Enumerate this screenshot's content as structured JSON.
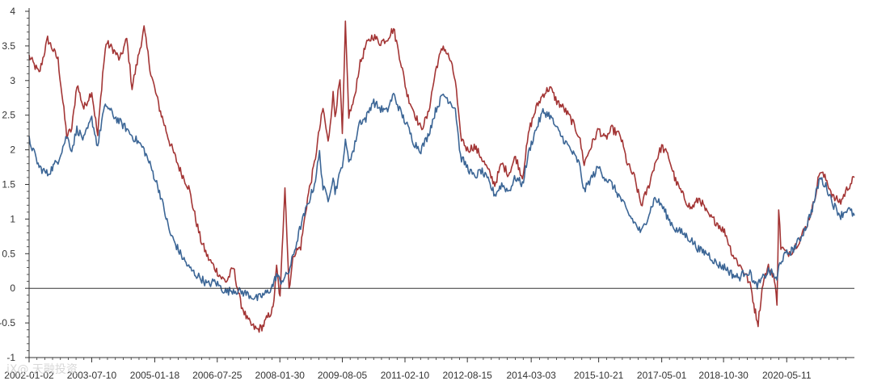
{
  "watermark": "iX@ 天融投资",
  "chart_data": {
    "type": "line",
    "title": "",
    "xlabel": "",
    "ylabel": "",
    "ylim": [
      -1,
      4
    ],
    "yticks": [
      -1,
      -0.5,
      0,
      0.5,
      1,
      1.5,
      2,
      2.5,
      3,
      3.5,
      4
    ],
    "ytick_labels": [
      "-1",
      "-0.5",
      "0",
      "0.5",
      "1",
      "1.5",
      "2",
      "2.5",
      "3",
      "3.5",
      "4"
    ],
    "xlim": [
      "2002-01-02",
      "2021-12-31"
    ],
    "xtick_labels": [
      "2002-01-02",
      "2003-07-10",
      "2005-01-18",
      "2006-07-25",
      "2008-01-30",
      "2009-08-05",
      "2011-02-10",
      "2012-08-15",
      "2014-03-03",
      "2015-10-21",
      "2017-05-01",
      "2018-10-30",
      "2020-05-11"
    ],
    "zero_line": true,
    "grid": false,
    "legend": "none",
    "series": [
      {
        "color": "#a33535",
        "points": [
          [
            "2002-01-02",
            3.35
          ],
          [
            "2002-04-01",
            3.1
          ],
          [
            "2002-06-15",
            3.6
          ],
          [
            "2002-09-15",
            3.3
          ],
          [
            "2002-12-01",
            2.2
          ],
          [
            "2003-01-15",
            2.3
          ],
          [
            "2003-03-01",
            2.95
          ],
          [
            "2003-05-01",
            2.6
          ],
          [
            "2003-07-10",
            2.85
          ],
          [
            "2003-09-01",
            2.2
          ],
          [
            "2003-10-15",
            3.1
          ],
          [
            "2003-11-15",
            3.55
          ],
          [
            "2004-01-15",
            3.45
          ],
          [
            "2004-03-15",
            3.3
          ],
          [
            "2004-05-15",
            3.6
          ],
          [
            "2004-07-01",
            2.9
          ],
          [
            "2004-09-01",
            3.4
          ],
          [
            "2004-10-15",
            3.75
          ],
          [
            "2004-12-15",
            3.1
          ],
          [
            "2005-03-01",
            2.6
          ],
          [
            "2005-06-01",
            2.1
          ],
          [
            "2005-09-01",
            1.7
          ],
          [
            "2005-11-15",
            1.45
          ],
          [
            "2006-01-15",
            1.0
          ],
          [
            "2006-03-01",
            0.7
          ],
          [
            "2006-05-01",
            0.45
          ],
          [
            "2006-07-01",
            0.3
          ],
          [
            "2006-09-01",
            0.15
          ],
          [
            "2006-10-15",
            0.1
          ],
          [
            "2006-12-15",
            0.3
          ],
          [
            "2007-02-15",
            -0.2
          ],
          [
            "2007-04-15",
            -0.45
          ],
          [
            "2007-06-01",
            -0.55
          ],
          [
            "2007-07-15",
            -0.6
          ],
          [
            "2007-09-01",
            -0.55
          ],
          [
            "2007-10-20",
            -0.4
          ],
          [
            "2007-12-01",
            -0.3
          ],
          [
            "2008-01-01",
            0.3
          ],
          [
            "2008-02-01",
            -0.15
          ],
          [
            "2008-03-15",
            1.5
          ],
          [
            "2008-04-20",
            0.0
          ],
          [
            "2008-06-01",
            0.5
          ],
          [
            "2008-08-01",
            0.6
          ],
          [
            "2008-10-01",
            1.3
          ],
          [
            "2008-12-01",
            1.8
          ],
          [
            "2009-01-15",
            2.3
          ],
          [
            "2009-02-15",
            2.6
          ],
          [
            "2009-04-01",
            2.1
          ],
          [
            "2009-05-15",
            2.8
          ],
          [
            "2009-06-01",
            2.5
          ],
          [
            "2009-07-15",
            3.0
          ],
          [
            "2009-08-05",
            2.2
          ],
          [
            "2009-09-01",
            3.8
          ],
          [
            "2009-10-01",
            2.5
          ],
          [
            "2009-11-15",
            2.7
          ],
          [
            "2010-01-01",
            3.2
          ],
          [
            "2010-03-01",
            3.5
          ],
          [
            "2010-05-01",
            3.65
          ],
          [
            "2010-07-01",
            3.55
          ],
          [
            "2010-09-01",
            3.6
          ],
          [
            "2010-11-01",
            3.75
          ],
          [
            "2011-01-01",
            3.3
          ],
          [
            "2011-03-01",
            2.8
          ],
          [
            "2011-05-01",
            2.55
          ],
          [
            "2011-07-01",
            2.3
          ],
          [
            "2011-09-01",
            2.5
          ],
          [
            "2011-11-15",
            3.2
          ],
          [
            "2012-01-15",
            3.5
          ],
          [
            "2012-03-15",
            3.3
          ],
          [
            "2012-05-01",
            3.0
          ],
          [
            "2012-06-15",
            2.2
          ],
          [
            "2012-08-15",
            2.0
          ],
          [
            "2012-10-15",
            2.05
          ],
          [
            "2012-12-15",
            1.9
          ],
          [
            "2013-02-15",
            1.7
          ],
          [
            "2013-04-15",
            1.5
          ],
          [
            "2013-06-15",
            1.8
          ],
          [
            "2013-08-15",
            1.65
          ],
          [
            "2013-10-15",
            1.9
          ],
          [
            "2013-12-15",
            1.6
          ],
          [
            "2014-02-15",
            2.3
          ],
          [
            "2014-04-15",
            2.6
          ],
          [
            "2014-06-15",
            2.8
          ],
          [
            "2014-08-15",
            2.9
          ],
          [
            "2014-10-15",
            2.7
          ],
          [
            "2014-12-15",
            2.6
          ],
          [
            "2015-02-15",
            2.45
          ],
          [
            "2015-05-01",
            2.2
          ],
          [
            "2015-06-15",
            1.8
          ],
          [
            "2015-08-01",
            2.0
          ],
          [
            "2015-10-21",
            2.3
          ],
          [
            "2015-12-15",
            2.15
          ],
          [
            "2016-02-15",
            2.3
          ],
          [
            "2016-05-01",
            2.2
          ],
          [
            "2016-07-01",
            1.8
          ],
          [
            "2016-09-01",
            1.6
          ],
          [
            "2016-11-01",
            1.2
          ],
          [
            "2017-01-01",
            1.45
          ],
          [
            "2017-03-01",
            1.8
          ],
          [
            "2017-05-01",
            2.05
          ],
          [
            "2017-07-01",
            1.9
          ],
          [
            "2017-09-01",
            1.55
          ],
          [
            "2017-11-01",
            1.35
          ],
          [
            "2018-01-15",
            1.15
          ],
          [
            "2018-04-01",
            1.3
          ],
          [
            "2018-06-15",
            1.05
          ],
          [
            "2018-09-01",
            0.95
          ],
          [
            "2018-11-15",
            0.8
          ],
          [
            "2019-01-15",
            0.5
          ],
          [
            "2019-03-15",
            0.35
          ],
          [
            "2019-05-15",
            0.2
          ],
          [
            "2019-07-01",
            0.0
          ],
          [
            "2019-08-01",
            -0.3
          ],
          [
            "2019-09-01",
            -0.5
          ],
          [
            "2019-10-15",
            0.1
          ],
          [
            "2019-12-01",
            0.3
          ],
          [
            "2020-01-15",
            0.2
          ],
          [
            "2020-02-15",
            -0.2
          ],
          [
            "2020-03-01",
            1.15
          ],
          [
            "2020-03-20",
            0.6
          ],
          [
            "2020-05-11",
            0.5
          ],
          [
            "2020-07-01",
            0.55
          ],
          [
            "2020-09-01",
            0.7
          ],
          [
            "2020-11-01",
            0.9
          ],
          [
            "2021-01-01",
            1.2
          ],
          [
            "2021-03-01",
            1.7
          ],
          [
            "2021-05-01",
            1.55
          ],
          [
            "2021-07-01",
            1.3
          ],
          [
            "2021-09-01",
            1.25
          ],
          [
            "2021-11-01",
            1.45
          ],
          [
            "2021-12-31",
            1.6
          ]
        ]
      },
      {
        "color": "#3c6696",
        "points": [
          [
            "2002-01-02",
            2.15
          ],
          [
            "2002-04-01",
            1.75
          ],
          [
            "2002-06-15",
            1.65
          ],
          [
            "2002-09-15",
            1.85
          ],
          [
            "2002-12-01",
            2.2
          ],
          [
            "2003-01-15",
            2.0
          ],
          [
            "2003-03-01",
            2.3
          ],
          [
            "2003-05-01",
            2.15
          ],
          [
            "2003-07-10",
            2.45
          ],
          [
            "2003-09-01",
            2.05
          ],
          [
            "2003-10-15",
            2.5
          ],
          [
            "2003-11-15",
            2.65
          ],
          [
            "2004-01-15",
            2.5
          ],
          [
            "2004-03-15",
            2.4
          ],
          [
            "2004-05-15",
            2.3
          ],
          [
            "2004-07-01",
            2.2
          ],
          [
            "2004-09-01",
            2.1
          ],
          [
            "2004-10-15",
            2.0
          ],
          [
            "2004-12-15",
            1.75
          ],
          [
            "2005-03-01",
            1.4
          ],
          [
            "2005-06-01",
            0.8
          ],
          [
            "2005-09-01",
            0.5
          ],
          [
            "2005-11-15",
            0.3
          ],
          [
            "2006-01-15",
            0.2
          ],
          [
            "2006-03-01",
            0.15
          ],
          [
            "2006-05-01",
            0.05
          ],
          [
            "2006-07-01",
            0.1
          ],
          [
            "2006-09-01",
            0.0
          ],
          [
            "2006-10-15",
            -0.05
          ],
          [
            "2006-12-15",
            -0.02
          ],
          [
            "2007-02-15",
            -0.05
          ],
          [
            "2007-04-15",
            -0.08
          ],
          [
            "2007-06-01",
            -0.12
          ],
          [
            "2007-07-15",
            -0.15
          ],
          [
            "2007-09-01",
            -0.1
          ],
          [
            "2007-10-20",
            -0.05
          ],
          [
            "2007-12-01",
            0.05
          ],
          [
            "2008-01-01",
            0.2
          ],
          [
            "2008-02-01",
            0.1
          ],
          [
            "2008-03-15",
            0.15
          ],
          [
            "2008-04-20",
            0.25
          ],
          [
            "2008-06-01",
            0.5
          ],
          [
            "2008-08-01",
            0.9
          ],
          [
            "2008-10-01",
            1.2
          ],
          [
            "2008-12-01",
            1.5
          ],
          [
            "2009-01-15",
            1.95
          ],
          [
            "2009-02-15",
            1.45
          ],
          [
            "2009-04-01",
            1.3
          ],
          [
            "2009-05-15",
            1.6
          ],
          [
            "2009-06-01",
            1.4
          ],
          [
            "2009-07-15",
            1.65
          ],
          [
            "2009-08-05",
            1.8
          ],
          [
            "2009-09-01",
            2.1
          ],
          [
            "2009-10-01",
            1.85
          ],
          [
            "2009-11-15",
            2.0
          ],
          [
            "2010-01-01",
            2.4
          ],
          [
            "2010-03-01",
            2.45
          ],
          [
            "2010-05-01",
            2.7
          ],
          [
            "2010-07-01",
            2.6
          ],
          [
            "2010-09-01",
            2.55
          ],
          [
            "2010-11-01",
            2.8
          ],
          [
            "2011-01-01",
            2.55
          ],
          [
            "2011-03-01",
            2.35
          ],
          [
            "2011-05-01",
            2.1
          ],
          [
            "2011-07-01",
            2.0
          ],
          [
            "2011-09-01",
            2.2
          ],
          [
            "2011-11-15",
            2.6
          ],
          [
            "2012-01-15",
            2.8
          ],
          [
            "2012-03-15",
            2.7
          ],
          [
            "2012-05-01",
            2.6
          ],
          [
            "2012-06-15",
            1.9
          ],
          [
            "2012-08-15",
            1.75
          ],
          [
            "2012-10-15",
            1.6
          ],
          [
            "2012-12-15",
            1.7
          ],
          [
            "2013-02-15",
            1.55
          ],
          [
            "2013-04-15",
            1.35
          ],
          [
            "2013-06-15",
            1.5
          ],
          [
            "2013-08-15",
            1.4
          ],
          [
            "2013-10-15",
            1.6
          ],
          [
            "2013-12-15",
            1.5
          ],
          [
            "2014-02-15",
            2.0
          ],
          [
            "2014-04-15",
            2.3
          ],
          [
            "2014-06-15",
            2.55
          ],
          [
            "2014-08-15",
            2.5
          ],
          [
            "2014-10-15",
            2.3
          ],
          [
            "2014-12-15",
            2.15
          ],
          [
            "2015-02-15",
            2.0
          ],
          [
            "2015-05-01",
            1.8
          ],
          [
            "2015-06-15",
            1.4
          ],
          [
            "2015-08-01",
            1.55
          ],
          [
            "2015-10-21",
            1.75
          ],
          [
            "2015-12-15",
            1.6
          ],
          [
            "2016-02-15",
            1.5
          ],
          [
            "2016-05-01",
            1.3
          ],
          [
            "2016-07-01",
            1.1
          ],
          [
            "2016-09-01",
            0.95
          ],
          [
            "2016-11-01",
            0.8
          ],
          [
            "2017-01-01",
            1.05
          ],
          [
            "2017-03-01",
            1.3
          ],
          [
            "2017-05-01",
            1.2
          ],
          [
            "2017-07-01",
            1.0
          ],
          [
            "2017-09-01",
            0.85
          ],
          [
            "2017-11-01",
            0.8
          ],
          [
            "2018-01-15",
            0.7
          ],
          [
            "2018-04-01",
            0.55
          ],
          [
            "2018-06-15",
            0.5
          ],
          [
            "2018-09-01",
            0.35
          ],
          [
            "2018-11-15",
            0.3
          ],
          [
            "2019-01-15",
            0.2
          ],
          [
            "2019-03-15",
            0.15
          ],
          [
            "2019-05-15",
            0.25
          ],
          [
            "2019-07-01",
            0.2
          ],
          [
            "2019-08-01",
            0.05
          ],
          [
            "2019-09-01",
            0.05
          ],
          [
            "2019-10-15",
            0.15
          ],
          [
            "2019-12-01",
            0.25
          ],
          [
            "2020-01-15",
            0.2
          ],
          [
            "2020-02-15",
            0.1
          ],
          [
            "2020-03-01",
            0.3
          ],
          [
            "2020-03-20",
            0.4
          ],
          [
            "2020-05-11",
            0.5
          ],
          [
            "2020-07-01",
            0.55
          ],
          [
            "2020-09-01",
            0.7
          ],
          [
            "2020-11-01",
            0.9
          ],
          [
            "2021-01-01",
            1.2
          ],
          [
            "2021-03-01",
            1.6
          ],
          [
            "2021-05-01",
            1.45
          ],
          [
            "2021-07-01",
            1.2
          ],
          [
            "2021-09-01",
            1.05
          ],
          [
            "2021-11-01",
            1.15
          ],
          [
            "2021-12-31",
            1.05
          ]
        ]
      }
    ]
  }
}
